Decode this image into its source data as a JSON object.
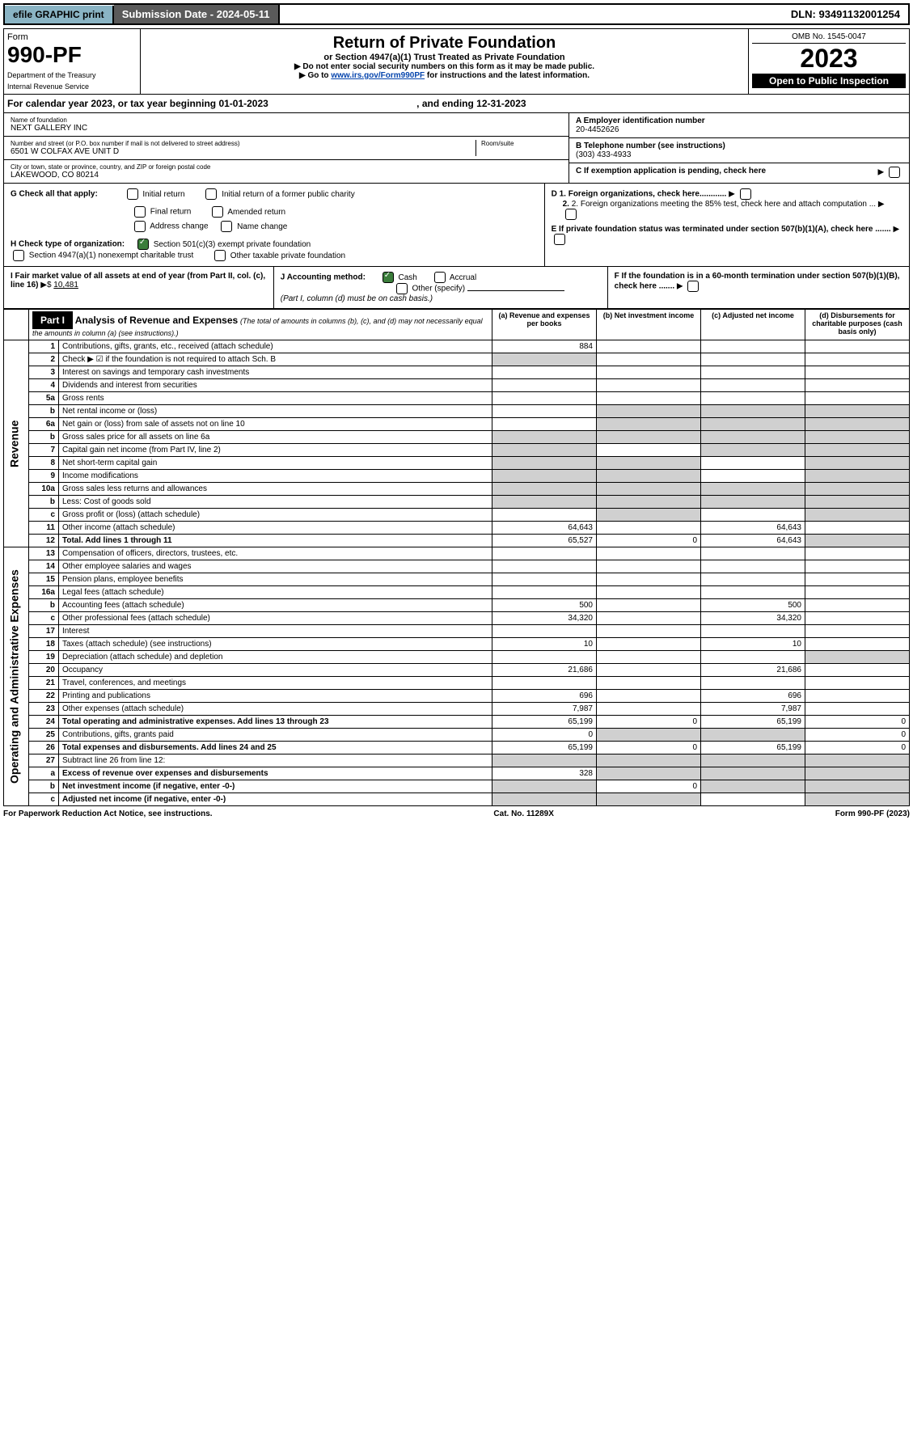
{
  "topbar": {
    "efile": "efile GRAPHIC print",
    "subdate_label": "Submission Date - ",
    "subdate": "2024-05-11",
    "dln_label": "DLN: ",
    "dln": "93491132001254"
  },
  "header": {
    "form_word": "Form",
    "form_num": "990-PF",
    "dept": "Department of the Treasury",
    "irs": "Internal Revenue Service",
    "title": "Return of Private Foundation",
    "subtitle": "or Section 4947(a)(1) Trust Treated as Private Foundation",
    "instr1": "▶ Do not enter social security numbers on this form as it may be made public.",
    "instr2": "▶ Go to ",
    "instr2_link": "www.irs.gov/Form990PF",
    "instr2_tail": " for instructions and the latest information.",
    "omb": "OMB No. 1545-0047",
    "year": "2023",
    "inspect": "Open to Public Inspection"
  },
  "calendar": {
    "text": "For calendar year 2023, or tax year beginning 01-01-2023",
    "ending": ", and ending 12-31-2023"
  },
  "entity": {
    "name_label": "Name of foundation",
    "name": "NEXT GALLERY INC",
    "addr_label": "Number and street (or P.O. box number if mail is not delivered to street address)",
    "room": "Room/suite",
    "addr": "6501 W COLFAX AVE UNIT D",
    "city_label": "City or town, state or province, country, and ZIP or foreign postal code",
    "city": "LAKEWOOD, CO  80214",
    "ein_label": "A Employer identification number",
    "ein": "20-4452626",
    "phone_label": "B Telephone number (see instructions)",
    "phone": "(303) 433-4933",
    "c_label": "C If exemption application is pending, check here",
    "d1": "D 1. Foreign organizations, check here............",
    "d2": "2. Foreign organizations meeting the 85% test, check here and attach computation ...",
    "e": "E  If private foundation status was terminated under section 507(b)(1)(A), check here .......",
    "f": "F  If the foundation is in a 60-month termination under section 507(b)(1)(B), check here ......."
  },
  "g": {
    "label": "G Check all that apply:",
    "opts": [
      "Initial return",
      "Initial return of a former public charity",
      "Final return",
      "Amended return",
      "Address change",
      "Name change"
    ]
  },
  "h": {
    "label": "H Check type of organization:",
    "o1": "Section 501(c)(3) exempt private foundation",
    "o2": "Section 4947(a)(1) nonexempt charitable trust",
    "o3": "Other taxable private foundation"
  },
  "i": {
    "label": "I Fair market value of all assets at end of year (from Part II, col. (c), line 16)",
    "arrow": "▶$",
    "value": "10,481"
  },
  "j": {
    "label": "J Accounting method:",
    "cash": "Cash",
    "accrual": "Accrual",
    "other": "Other (specify)",
    "note": "(Part I, column (d) must be on cash basis.)"
  },
  "part1": {
    "badge": "Part I",
    "title": "Analysis of Revenue and Expenses",
    "note": "(The total of amounts in columns (b), (c), and (d) may not necessarily equal the amounts in column (a) (see instructions).)",
    "col_a": "(a) Revenue and expenses per books",
    "col_b": "(b) Net investment income",
    "col_c": "(c) Adjusted net income",
    "col_d": "(d) Disbursements for charitable purposes (cash basis only)"
  },
  "sides": {
    "rev": "Revenue",
    "exp": "Operating and Administrative Expenses"
  },
  "rows": [
    {
      "n": "1",
      "d": "Contributions, gifts, grants, etc., received (attach schedule)",
      "a": "884"
    },
    {
      "n": "2",
      "d": "Check ▶ ☑ if the foundation is not required to attach Sch. B",
      "shadeA": true
    },
    {
      "n": "3",
      "d": "Interest on savings and temporary cash investments"
    },
    {
      "n": "4",
      "d": "Dividends and interest from securities"
    },
    {
      "n": "5a",
      "d": "Gross rents"
    },
    {
      "n": "b",
      "d": "Net rental income or (loss)",
      "shadeRest": true
    },
    {
      "n": "6a",
      "d": "Net gain or (loss) from sale of assets not on line 10",
      "shadeBCD": true
    },
    {
      "n": "b",
      "d": "Gross sales price for all assets on line 6a",
      "shadeA": true,
      "shadeRest": true
    },
    {
      "n": "7",
      "d": "Capital gain net income (from Part IV, line 2)",
      "shadeA": true,
      "shadeCD": true
    },
    {
      "n": "8",
      "d": "Net short-term capital gain",
      "shadeA": true,
      "shadeB": true,
      "shadeD": true
    },
    {
      "n": "9",
      "d": "Income modifications",
      "shadeA": true,
      "shadeB": true,
      "shadeD": true
    },
    {
      "n": "10a",
      "d": "Gross sales less returns and allowances",
      "shadeA": true,
      "shadeRest": true
    },
    {
      "n": "b",
      "d": "Less: Cost of goods sold",
      "shadeA": true,
      "shadeRest": true
    },
    {
      "n": "c",
      "d": "Gross profit or (loss) (attach schedule)",
      "shadeB": true,
      "shadeD": true
    },
    {
      "n": "11",
      "d": "Other income (attach schedule)",
      "a": "64,643",
      "c": "64,643"
    },
    {
      "n": "12",
      "d": "Total. Add lines 1 through 11",
      "bold": true,
      "a": "65,527",
      "b": "0",
      "c": "64,643",
      "shadeD": true
    },
    {
      "n": "13",
      "d": "Compensation of officers, directors, trustees, etc."
    },
    {
      "n": "14",
      "d": "Other employee salaries and wages"
    },
    {
      "n": "15",
      "d": "Pension plans, employee benefits"
    },
    {
      "n": "16a",
      "d": "Legal fees (attach schedule)"
    },
    {
      "n": "b",
      "d": "Accounting fees (attach schedule)",
      "a": "500",
      "c": "500"
    },
    {
      "n": "c",
      "d": "Other professional fees (attach schedule)",
      "a": "34,320",
      "c": "34,320"
    },
    {
      "n": "17",
      "d": "Interest"
    },
    {
      "n": "18",
      "d": "Taxes (attach schedule) (see instructions)",
      "a": "10",
      "c": "10"
    },
    {
      "n": "19",
      "d": "Depreciation (attach schedule) and depletion",
      "shadeD": true
    },
    {
      "n": "20",
      "d": "Occupancy",
      "a": "21,686",
      "c": "21,686"
    },
    {
      "n": "21",
      "d": "Travel, conferences, and meetings"
    },
    {
      "n": "22",
      "d": "Printing and publications",
      "a": "696",
      "c": "696"
    },
    {
      "n": "23",
      "d": "Other expenses (attach schedule)",
      "a": "7,987",
      "c": "7,987"
    },
    {
      "n": "24",
      "d": "Total operating and administrative expenses. Add lines 13 through 23",
      "bold": true,
      "a": "65,199",
      "b": "0",
      "c": "65,199",
      "dcol": "0"
    },
    {
      "n": "25",
      "d": "Contributions, gifts, grants paid",
      "a": "0",
      "shadeBC": true,
      "dcol": "0"
    },
    {
      "n": "26",
      "d": "Total expenses and disbursements. Add lines 24 and 25",
      "bold": true,
      "a": "65,199",
      "b": "0",
      "c": "65,199",
      "dcol": "0"
    },
    {
      "n": "27",
      "d": "Subtract line 26 from line 12:",
      "shadeAll": true
    },
    {
      "n": "a",
      "d": "Excess of revenue over expenses and disbursements",
      "bold": true,
      "a": "328",
      "shadeBCD": true
    },
    {
      "n": "b",
      "d": "Net investment income (if negative, enter -0-)",
      "bold": true,
      "shadeA": true,
      "b": "0",
      "shadeCD": true
    },
    {
      "n": "c",
      "d": "Adjusted net income (if negative, enter -0-)",
      "bold": true,
      "shadeA": true,
      "shadeB": true,
      "shadeD": true
    }
  ],
  "footer": {
    "left": "For Paperwork Reduction Act Notice, see instructions.",
    "mid": "Cat. No. 11289X",
    "right": "Form 990-PF (2023)"
  }
}
